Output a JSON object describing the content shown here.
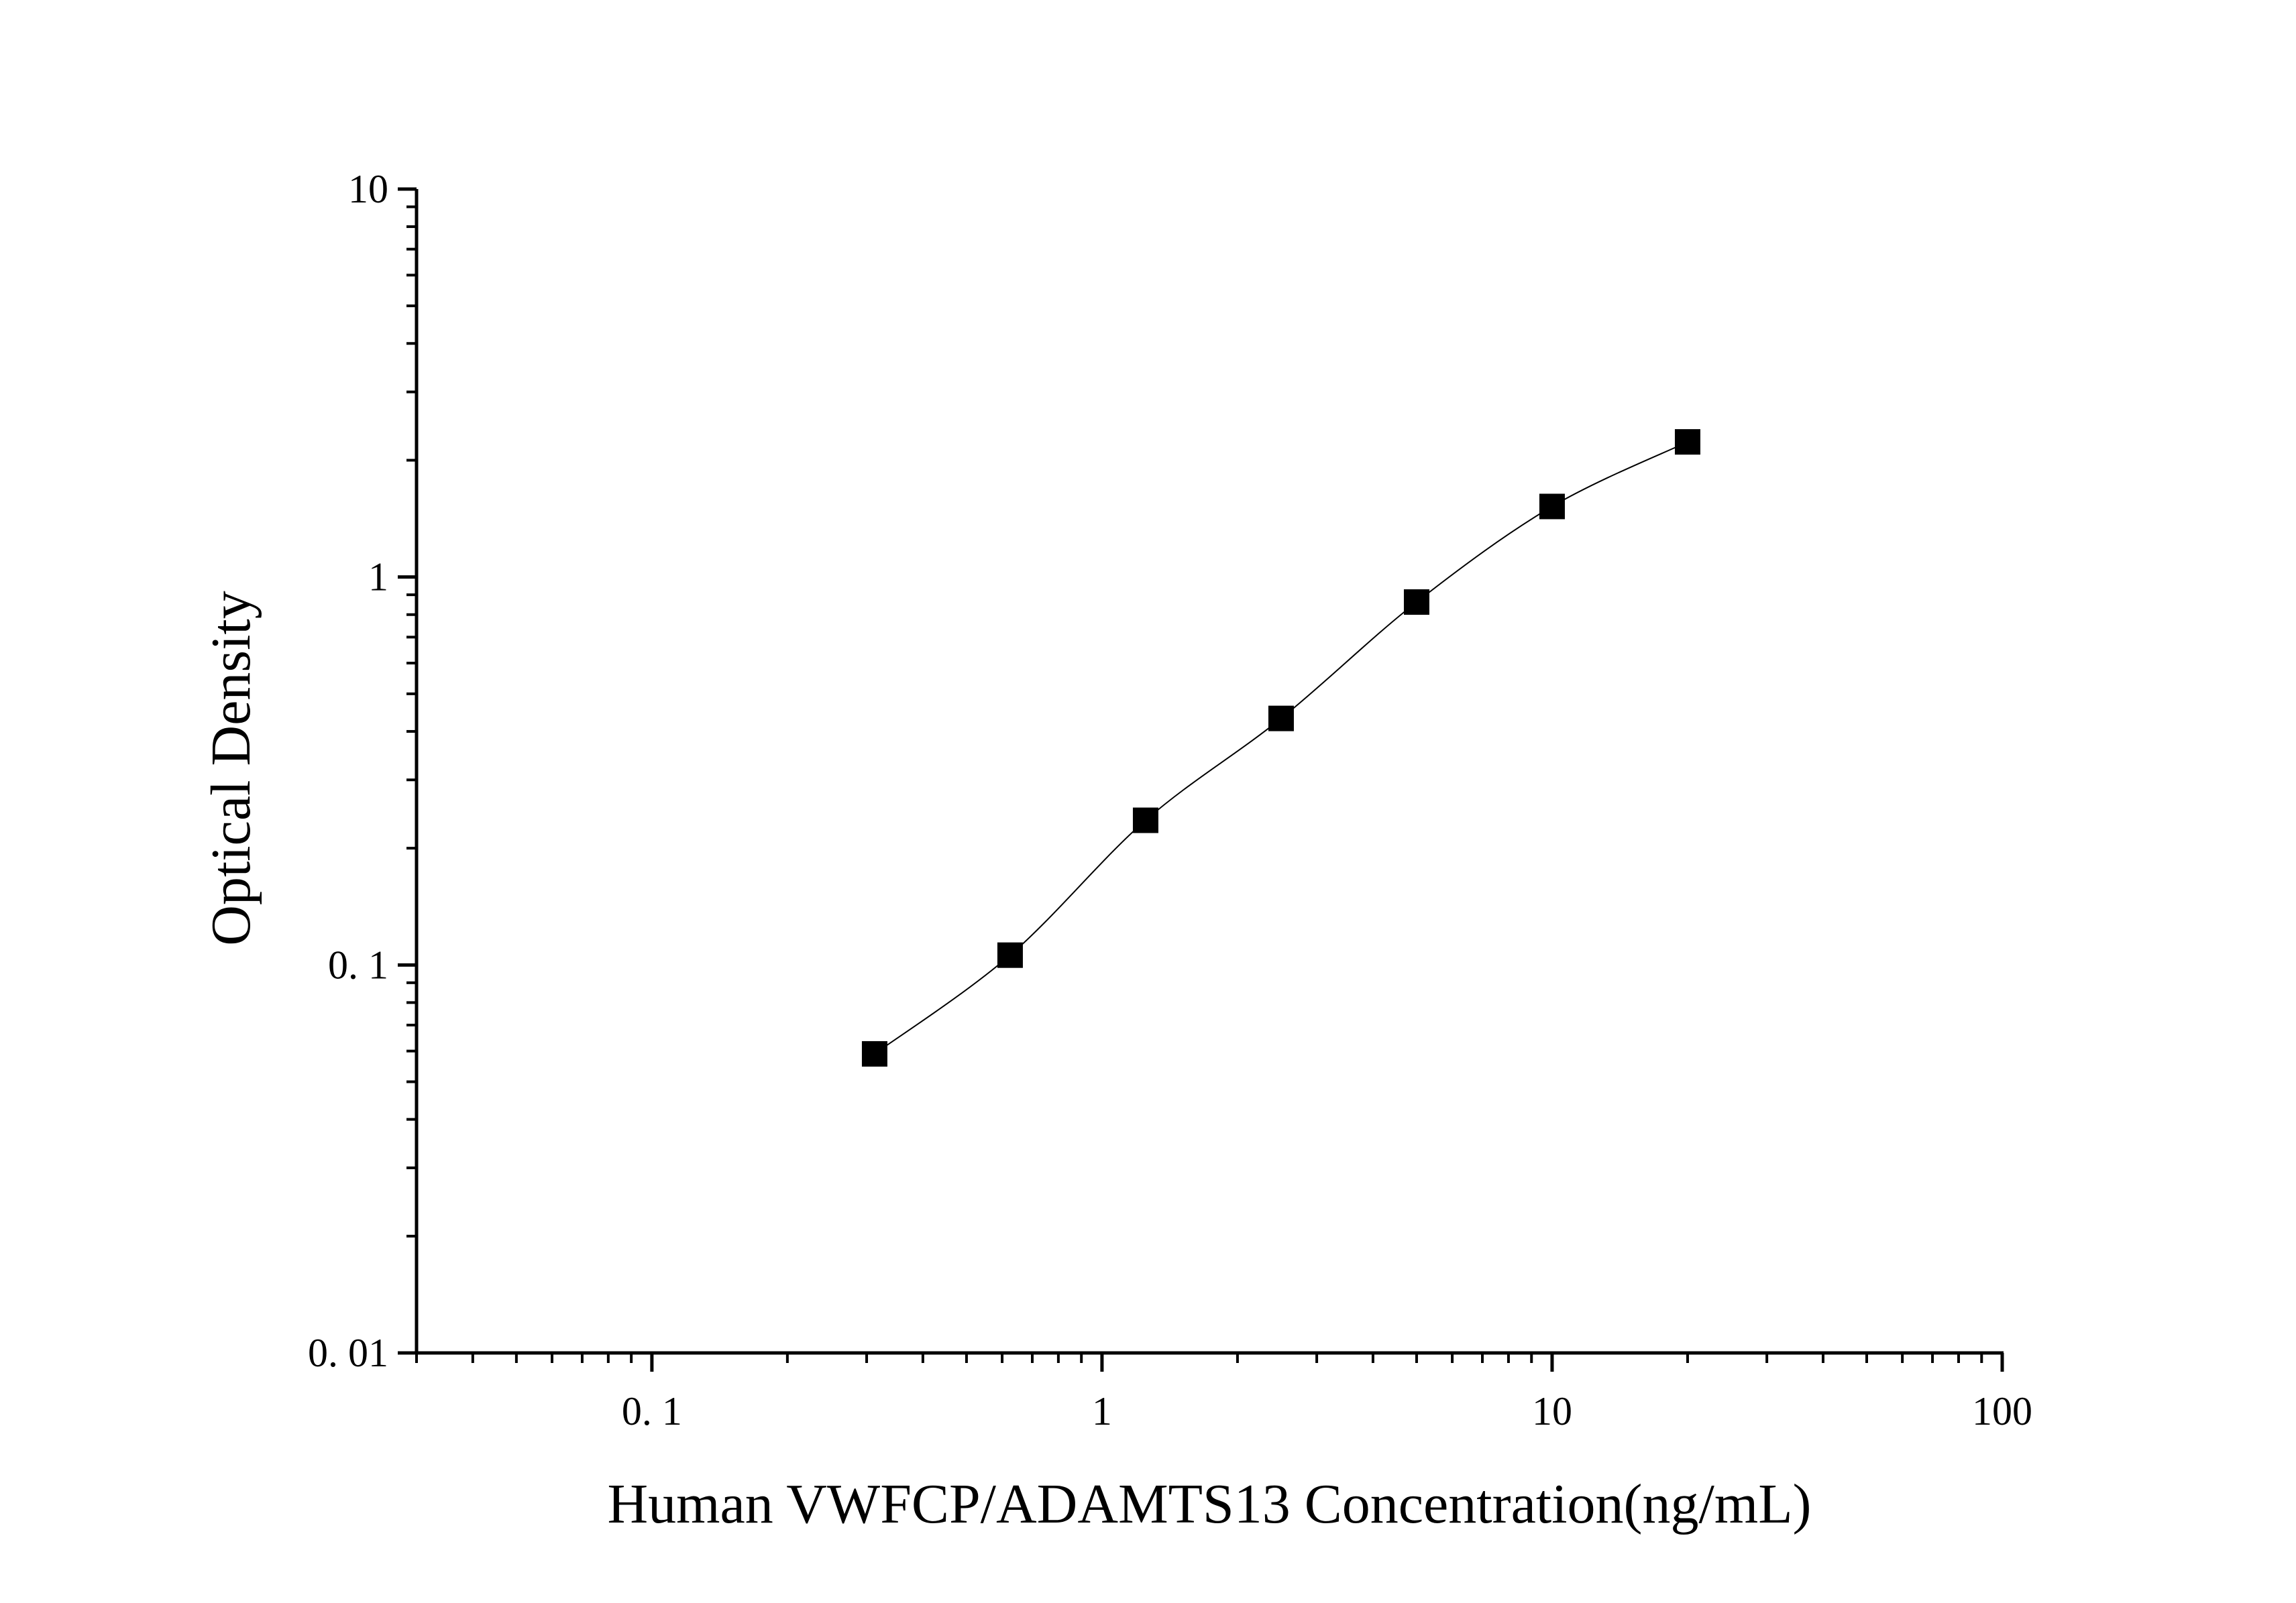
{
  "chart_data": {
    "type": "scatter",
    "title": "",
    "xlabel": "Human VWFCP/ADAMTS13 Concentration(ng/mL)",
    "ylabel": "Optical Density",
    "xscale": "log",
    "yscale": "log",
    "xlim": [
      0.03,
      100
    ],
    "ylim": [
      0.01,
      10
    ],
    "x_ticks": [
      {
        "value": 0.1,
        "label": "0. 1"
      },
      {
        "value": 1,
        "label": "1"
      },
      {
        "value": 10,
        "label": "10"
      },
      {
        "value": 100,
        "label": "100"
      }
    ],
    "y_ticks": [
      {
        "value": 0.01,
        "label": "0. 01"
      },
      {
        "value": 0.1,
        "label": "0. 1"
      },
      {
        "value": 1,
        "label": "1"
      },
      {
        "value": 10,
        "label": "10"
      }
    ],
    "grid": false,
    "legend": "none",
    "marker": "square",
    "color": "#000000",
    "series": [
      {
        "x": [
          0.3125,
          0.625,
          1.25,
          2.5,
          5,
          10,
          20
        ],
        "y": [
          0.059,
          0.106,
          0.236,
          0.432,
          0.862,
          1.52,
          2.23
        ]
      }
    ],
    "fit_curve": true
  }
}
